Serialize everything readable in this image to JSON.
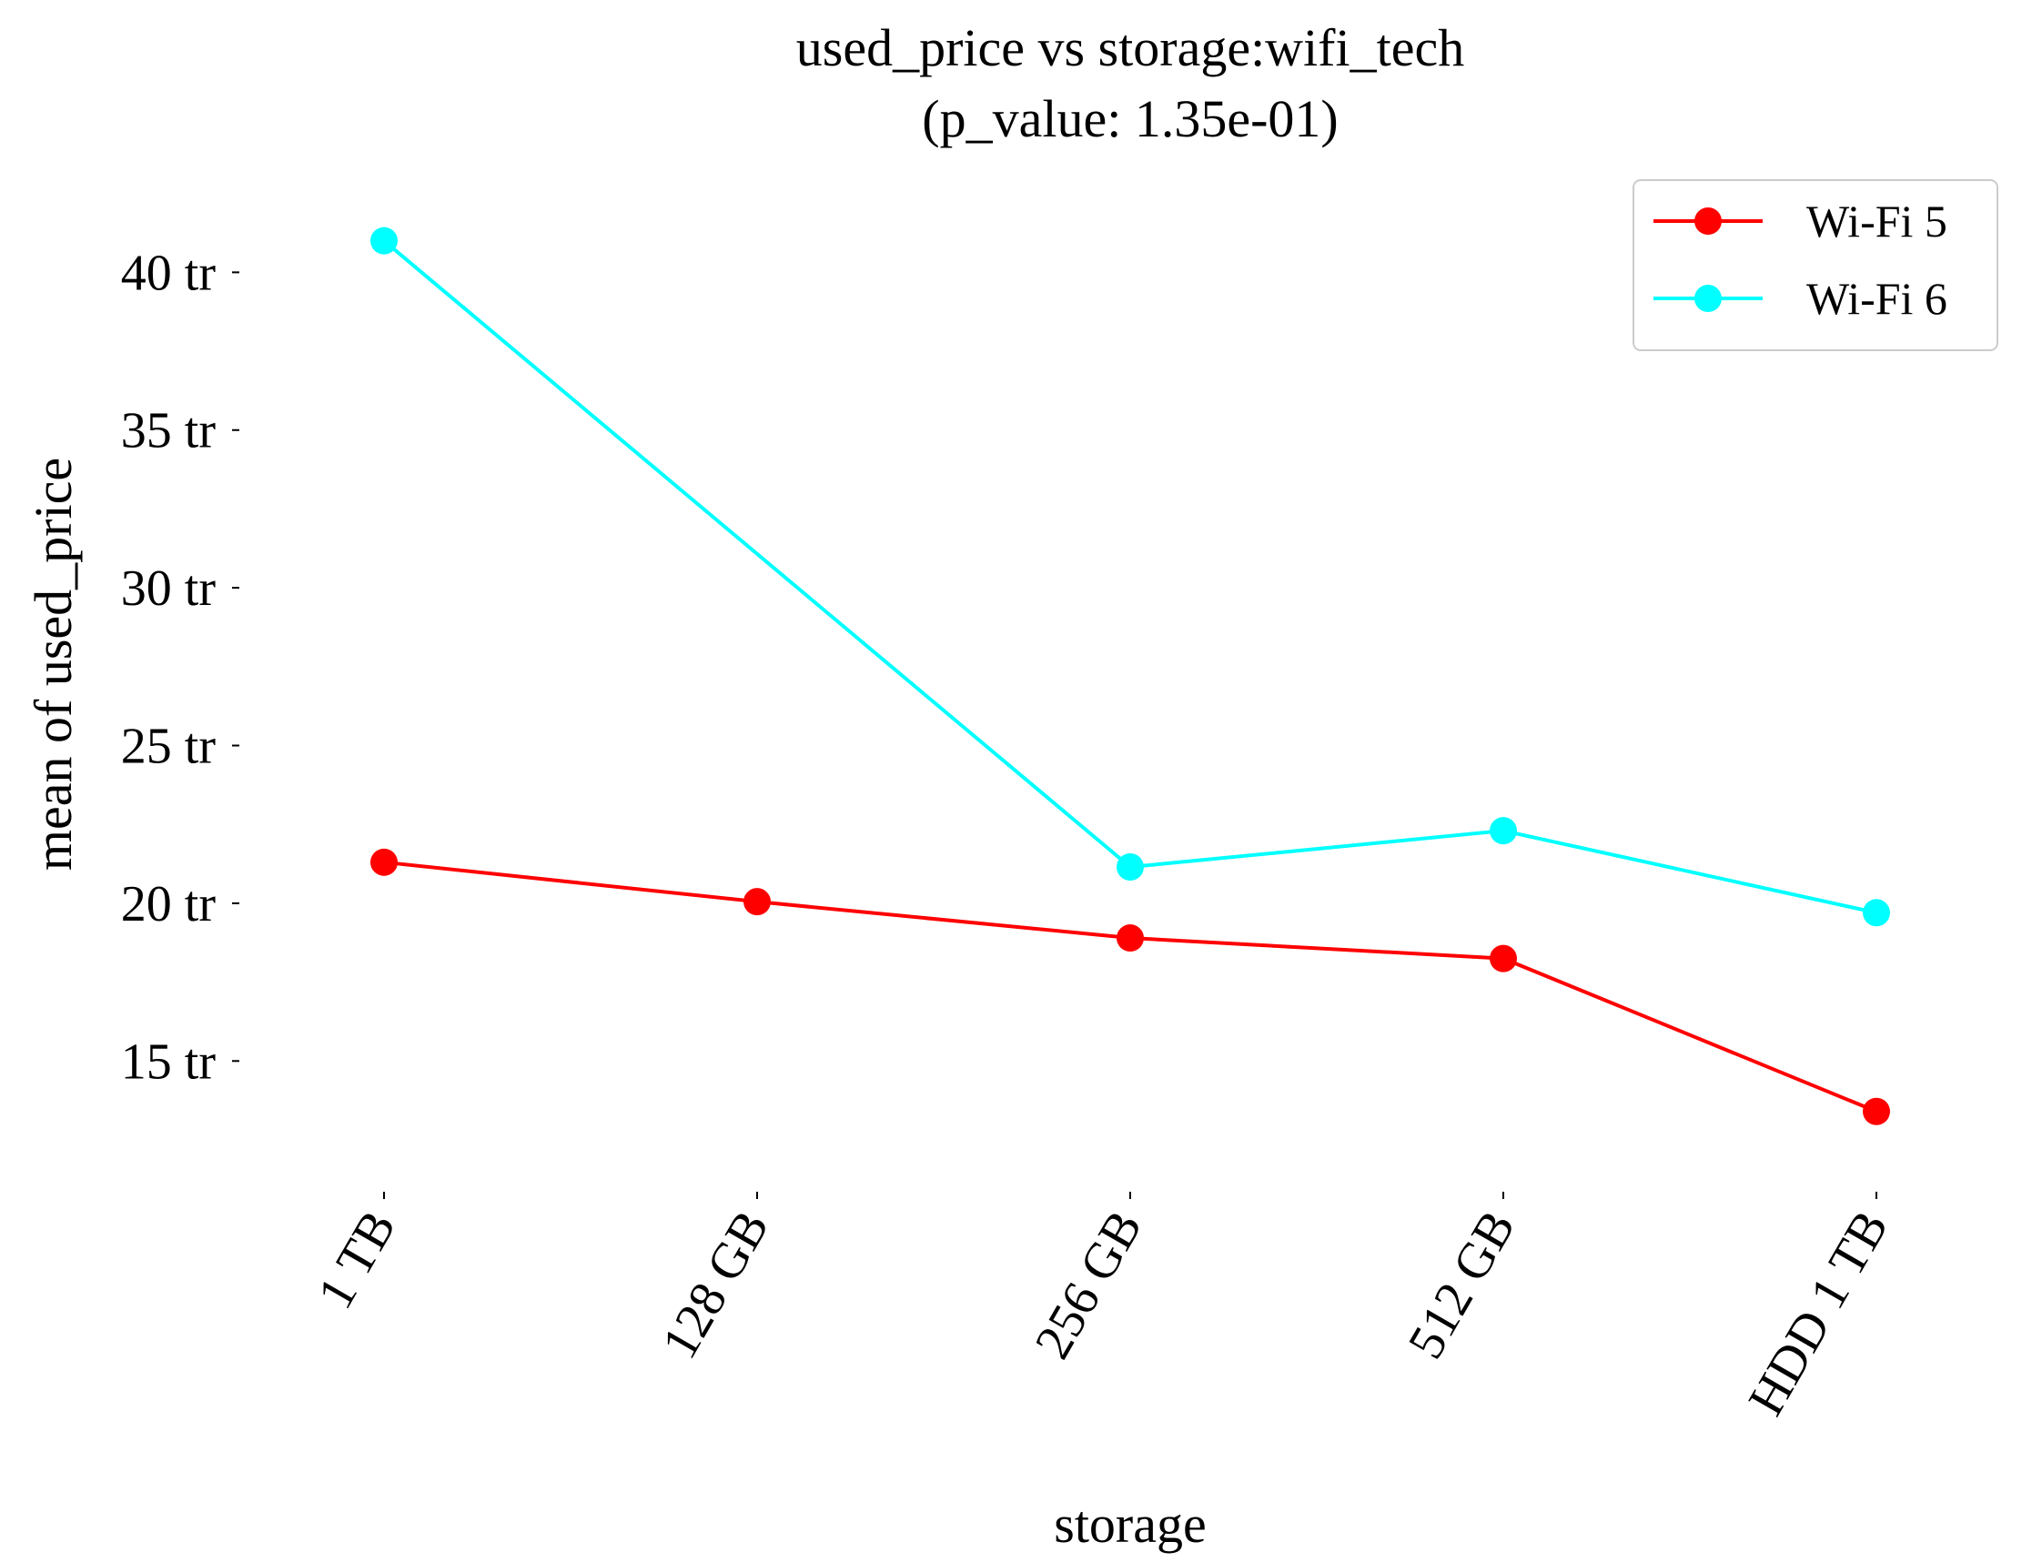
{
  "chart_data": {
    "type": "line",
    "title_line1": "used_price vs storage:wifi_tech",
    "title_line2": "(p_value: 1.35e-01)",
    "xlabel": "storage",
    "ylabel": "mean of used_price",
    "categories": [
      "1 TB",
      "128 GB",
      "256 GB",
      "512 GB",
      "HDD 1 TB"
    ],
    "y_ticks": [
      15,
      20,
      25,
      30,
      35,
      40
    ],
    "y_tick_labels": [
      "15 tr",
      "20 tr",
      "25 tr",
      "30 tr",
      "35 tr",
      "40 tr"
    ],
    "ylim": [
      11.0,
      42.0
    ],
    "grid": false,
    "legend_position": "top-right",
    "series": [
      {
        "name": "Wi-Fi 5",
        "color": "#ff0000",
        "values": [
          21.3,
          20.05,
          18.9,
          18.25,
          13.4
        ]
      },
      {
        "name": "Wi-Fi 6",
        "color": "#00ffff",
        "values": [
          41.0,
          null,
          21.15,
          22.3,
          19.7
        ]
      }
    ]
  }
}
